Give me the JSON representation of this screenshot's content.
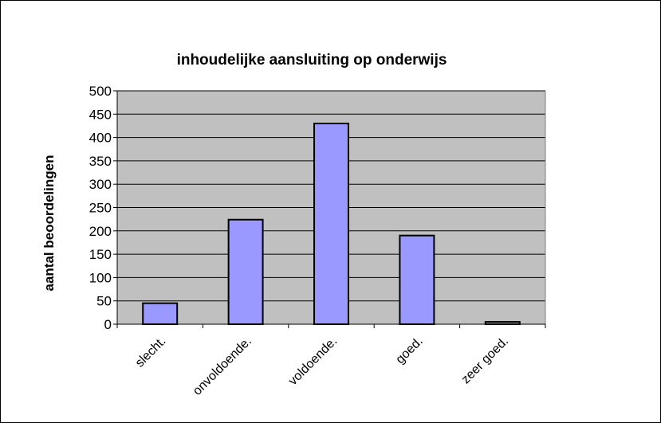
{
  "chart_data": {
    "type": "bar",
    "title": "inhoudelijke aansluiting op onderwijs",
    "xlabel": "",
    "ylabel": "aantal beoordelingen",
    "categories": [
      "slecht.",
      "onvoldoende.",
      "voldoende.",
      "goed.",
      "zeer goed."
    ],
    "values": [
      45,
      224,
      430,
      190,
      5
    ],
    "ylim": [
      0,
      500
    ],
    "yticks": [
      0,
      50,
      100,
      150,
      200,
      250,
      300,
      350,
      400,
      450,
      500
    ],
    "grid": true,
    "legend": "none",
    "colors": {
      "plot_background": "#c0c0c0",
      "bar_fill": "#9999ff",
      "bar_stroke": "#000000",
      "gridline": "#000000"
    }
  }
}
